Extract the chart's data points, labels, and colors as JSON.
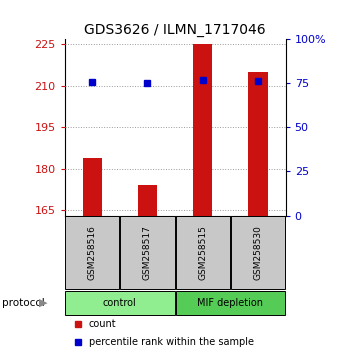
{
  "title": "GDS3626 / ILMN_1717046",
  "samples": [
    "GSM258516",
    "GSM258517",
    "GSM258515",
    "GSM258530"
  ],
  "counts": [
    184,
    174,
    225,
    215
  ],
  "percentiles": [
    75.5,
    75.0,
    76.5,
    76.0
  ],
  "groups": [
    {
      "label": "control",
      "samples": [
        0,
        1
      ],
      "color": "#90EE90"
    },
    {
      "label": "MIF depletion",
      "samples": [
        2,
        3
      ],
      "color": "#55CC55"
    }
  ],
  "ylim_left": [
    163,
    227
  ],
  "yticks_left": [
    165,
    180,
    195,
    210,
    225
  ],
  "ylim_right": [
    0,
    100
  ],
  "yticks_right": [
    0,
    25,
    50,
    75,
    100
  ],
  "bar_color": "#CC1111",
  "dot_color": "#0000CC",
  "bar_width": 0.35,
  "grid_color": "#888888",
  "bg_color": "#ffffff",
  "label_bg": "#C8C8C8",
  "title_fontsize": 10,
  "tick_fontsize": 8,
  "legend_fontsize": 7,
  "protocol_label": "protocol"
}
